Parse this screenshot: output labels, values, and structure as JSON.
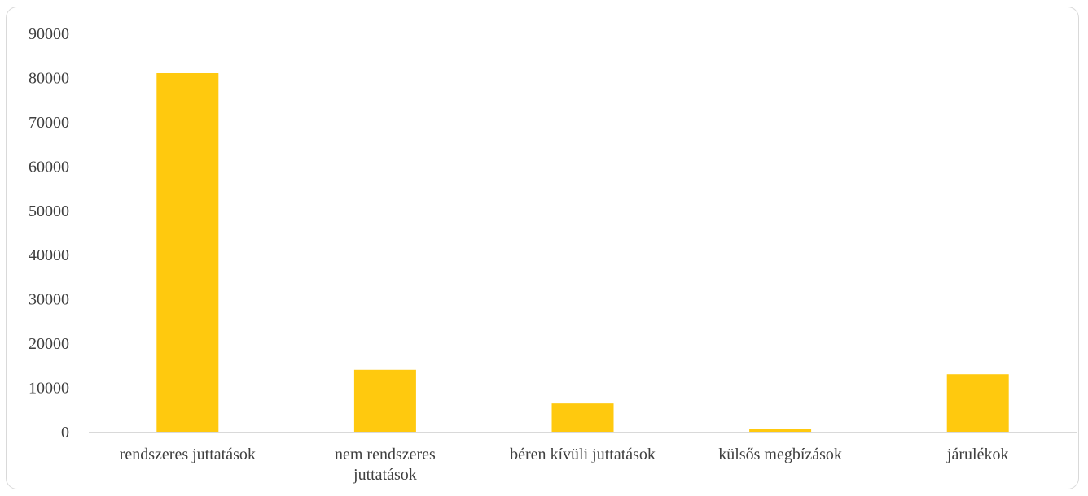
{
  "chart_data": {
    "type": "bar",
    "categories": [
      [
        "rendszeres juttatások"
      ],
      [
        "nem rendszeres",
        "juttatások"
      ],
      [
        "béren kívüli juttatások"
      ],
      [
        "külsős megbízások"
      ],
      [
        "járulékok"
      ]
    ],
    "values": [
      81000,
      14000,
      6400,
      700,
      13000
    ],
    "y_ticks": [
      "0",
      "10000",
      "20000",
      "30000",
      "40000",
      "50000",
      "60000",
      "70000",
      "80000",
      "90000"
    ],
    "ylim": [
      0,
      90000
    ],
    "grid": false,
    "bar_color": "#ffc90e",
    "axis_color": "#d9d9d9"
  }
}
